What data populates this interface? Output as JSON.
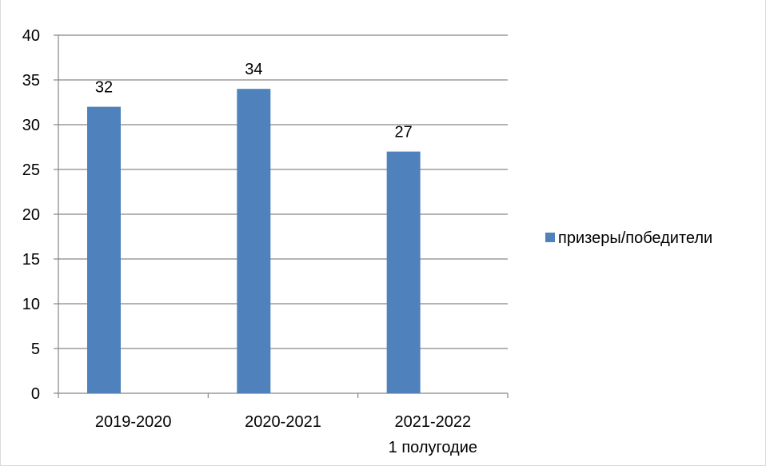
{
  "title": "",
  "chart_data": {
    "type": "bar",
    "categories": [
      [
        "2019-2020"
      ],
      [
        "2020-2021"
      ],
      [
        "2021-2022",
        "1 полугодие"
      ]
    ],
    "series": [
      {
        "name": "призеры/победители",
        "values": [
          32,
          34,
          27
        ],
        "color": "#4f81bd"
      }
    ],
    "ylim": [
      0,
      40
    ],
    "y_ticks": [
      0,
      5,
      10,
      15,
      20,
      25,
      30,
      35,
      40
    ],
    "gridlines": true,
    "data_labels": true,
    "legend_position": "right"
  }
}
